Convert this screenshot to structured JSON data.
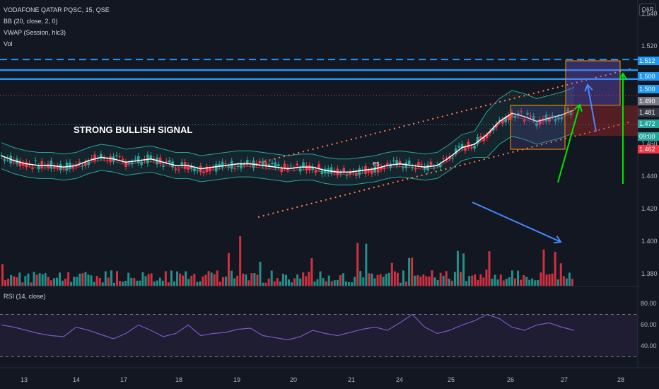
{
  "legend": {
    "symbol": "VODAFONE QATAR PQSC, 15, QSE",
    "bb": "BB (20, close, 2, 0)",
    "vwap": "VWAP (Session, hlc3)",
    "vol": "Vol",
    "rsi": "RSI (14, close)"
  },
  "currency_badge": "QAR",
  "annotation": "STRONG BULLISH SIGNAL",
  "marker_label": "es",
  "price_axis": {
    "ticks": [
      "1.540",
      "1.520",
      "1.500",
      "1.480",
      "1.460",
      "1.440",
      "1.420",
      "1.400",
      "1.380"
    ],
    "badges": [
      {
        "text": "1.512",
        "color": "#2196f3"
      },
      {
        "text": "1.500",
        "color": "#2196f3"
      },
      {
        "text": "1.500",
        "color": "#2196f3"
      },
      {
        "text": "1.490",
        "color": "#787b86"
      },
      {
        "text": "1.481",
        "color": "#363a45"
      },
      {
        "text": "1.472",
        "color": "#26a69a"
      },
      {
        "text": "09:00",
        "color": "#26a69a"
      },
      {
        "text": "1.462",
        "color": "#f23645"
      }
    ]
  },
  "rsi_axis": {
    "ticks": [
      "80.00",
      "60.00",
      "40.00"
    ],
    "upper": 70,
    "lower": 30
  },
  "time_axis": [
    "13",
    "14",
    "17",
    "18",
    "19",
    "20",
    "21",
    "24",
    "25",
    "26",
    "27",
    "28"
  ],
  "chart_data": {
    "type": "candlestick",
    "title": "VODAFONE QATAR PQSC, 15, QSE",
    "y_range": [
      1.375,
      1.545
    ],
    "horizontal_levels": [
      {
        "price": 1.512,
        "style": "dashed",
        "color": "#2196f3"
      },
      {
        "price": 1.5,
        "style": "solid",
        "color": "#2196f3"
      },
      {
        "price": 1.49,
        "style": "dotted",
        "color": "#f23645"
      },
      {
        "price": 1.472,
        "style": "dotted",
        "color": "#26a69a"
      }
    ],
    "price_series_estimate": [
      1.453,
      1.45,
      1.448,
      1.447,
      1.447,
      1.446,
      1.447,
      1.45,
      1.452,
      1.451,
      1.449,
      1.45,
      1.451,
      1.449,
      1.447,
      1.447,
      1.445,
      1.446,
      1.447,
      1.448,
      1.448,
      1.447,
      1.446,
      1.445,
      1.446,
      1.446,
      1.444,
      1.443,
      1.443,
      1.444,
      1.445,
      1.447,
      1.448,
      1.447,
      1.446,
      1.447,
      1.452,
      1.458,
      1.46,
      1.466,
      1.474,
      1.479,
      1.477,
      1.474,
      1.476,
      1.478,
      1.481
    ],
    "rsi_estimate": [
      60,
      58,
      55,
      52,
      50,
      49,
      58,
      55,
      51,
      47,
      52,
      60,
      55,
      49,
      52,
      60,
      50,
      52,
      53,
      56,
      57,
      50,
      48,
      46,
      49,
      55,
      52,
      50,
      53,
      56,
      58,
      55,
      62,
      70,
      58,
      52,
      55,
      60,
      64,
      70,
      66,
      58,
      55,
      60,
      62,
      58,
      55
    ]
  }
}
